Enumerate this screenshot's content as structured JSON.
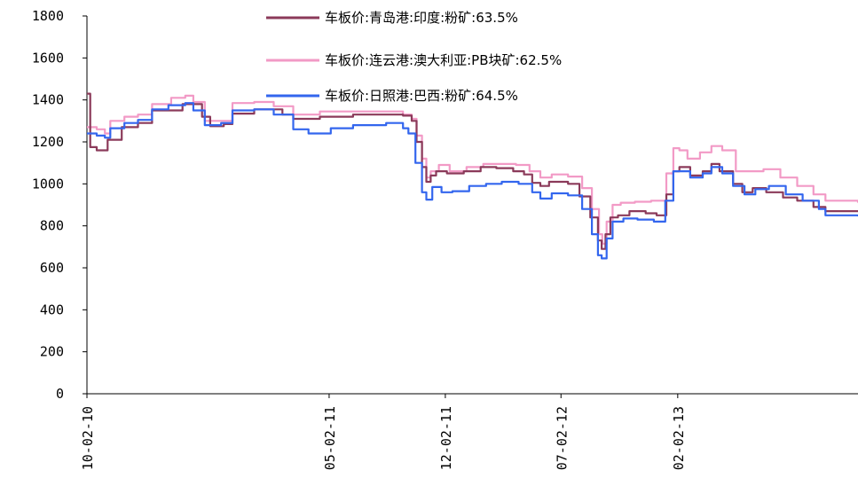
{
  "chart_data": {
    "type": "line",
    "title": "",
    "xlabel": "",
    "ylabel": "",
    "ylim": [
      0,
      1800
    ],
    "yticks": [
      0,
      200,
      400,
      600,
      800,
      1000,
      1200,
      1400,
      1600,
      1800
    ],
    "xlim": [
      "2010-02-10",
      "2013-12-31"
    ],
    "xticks": [
      "2010-02-10",
      "2011-05-02",
      "2011-12-02",
      "2012-07-02",
      "2013-02-02"
    ],
    "xtick_labels": [
      "10-02-10",
      "05-02-11",
      "12-02-11",
      "07-02-12",
      "02-02-13"
    ],
    "grid": false,
    "legend_position": "top-right",
    "series": [
      {
        "name": "车板价:青岛港:印度:粉矿:63.5%",
        "color": "#8b3a5a",
        "points": [
          [
            "2010-02-10",
            1430
          ],
          [
            "2010-02-14",
            1430
          ],
          [
            "2010-02-16",
            1175
          ],
          [
            "2010-02-28",
            1160
          ],
          [
            "2010-03-12",
            1160
          ],
          [
            "2010-03-20",
            1210
          ],
          [
            "2010-04-15",
            1270
          ],
          [
            "2010-05-15",
            1290
          ],
          [
            "2010-06-10",
            1350
          ],
          [
            "2010-07-15",
            1350
          ],
          [
            "2010-08-05",
            1380
          ],
          [
            "2010-08-20",
            1380
          ],
          [
            "2010-09-10",
            1320
          ],
          [
            "2010-09-25",
            1275
          ],
          [
            "2010-10-20",
            1285
          ],
          [
            "2010-11-05",
            1335
          ],
          [
            "2010-12-15",
            1355
          ],
          [
            "2011-01-15",
            1355
          ],
          [
            "2011-02-05",
            1330
          ],
          [
            "2011-02-25",
            1310
          ],
          [
            "2011-04-15",
            1320
          ],
          [
            "2011-06-15",
            1330
          ],
          [
            "2011-08-15",
            1330
          ],
          [
            "2011-09-15",
            1325
          ],
          [
            "2011-10-01",
            1300
          ],
          [
            "2011-10-10",
            1200
          ],
          [
            "2011-10-20",
            1080
          ],
          [
            "2011-10-28",
            1010
          ],
          [
            "2011-11-05",
            1040
          ],
          [
            "2011-11-15",
            1060
          ],
          [
            "2011-12-05",
            1050
          ],
          [
            "2012-01-05",
            1060
          ],
          [
            "2012-02-05",
            1080
          ],
          [
            "2012-03-05",
            1075
          ],
          [
            "2012-04-05",
            1060
          ],
          [
            "2012-04-25",
            1045
          ],
          [
            "2012-05-10",
            1005
          ],
          [
            "2012-05-25",
            990
          ],
          [
            "2012-06-10",
            1010
          ],
          [
            "2012-07-15",
            1000
          ],
          [
            "2012-08-05",
            940
          ],
          [
            "2012-08-25",
            840
          ],
          [
            "2012-09-08",
            730
          ],
          [
            "2012-09-15",
            690
          ],
          [
            "2012-09-22",
            760
          ],
          [
            "2012-10-01",
            840
          ],
          [
            "2012-10-15",
            850
          ],
          [
            "2012-11-05",
            870
          ],
          [
            "2012-12-05",
            860
          ],
          [
            "2012-12-25",
            850
          ],
          [
            "2013-01-12",
            950
          ],
          [
            "2013-01-25",
            1060
          ],
          [
            "2013-02-05",
            1080
          ],
          [
            "2013-02-25",
            1040
          ],
          [
            "2013-03-20",
            1060
          ],
          [
            "2013-04-05",
            1095
          ],
          [
            "2013-04-20",
            1060
          ],
          [
            "2013-05-15",
            1000
          ],
          [
            "2013-06-01",
            960
          ],
          [
            "2013-06-20",
            980
          ],
          [
            "2013-07-15",
            960
          ],
          [
            "2013-08-15",
            935
          ],
          [
            "2013-09-10",
            920
          ],
          [
            "2013-10-10",
            890
          ],
          [
            "2013-11-01",
            870
          ],
          [
            "2013-12-31",
            870
          ]
        ]
      },
      {
        "name": "车板价:连云港:澳大利亚:PB块矿:62.5%",
        "color": "#f29ac6",
        "points": [
          [
            "2010-02-10",
            1270
          ],
          [
            "2010-02-28",
            1260
          ],
          [
            "2010-03-15",
            1240
          ],
          [
            "2010-03-25",
            1300
          ],
          [
            "2010-04-20",
            1320
          ],
          [
            "2010-05-15",
            1330
          ],
          [
            "2010-06-10",
            1380
          ],
          [
            "2010-07-15",
            1410
          ],
          [
            "2010-08-10",
            1420
          ],
          [
            "2010-08-25",
            1390
          ],
          [
            "2010-09-15",
            1300
          ],
          [
            "2010-10-15",
            1300
          ],
          [
            "2010-11-05",
            1385
          ],
          [
            "2010-12-15",
            1390
          ],
          [
            "2011-01-20",
            1370
          ],
          [
            "2011-02-25",
            1330
          ],
          [
            "2011-04-15",
            1345
          ],
          [
            "2011-06-15",
            1345
          ],
          [
            "2011-08-15",
            1345
          ],
          [
            "2011-09-15",
            1330
          ],
          [
            "2011-10-01",
            1310
          ],
          [
            "2011-10-10",
            1230
          ],
          [
            "2011-10-20",
            1120
          ],
          [
            "2011-10-28",
            1030
          ],
          [
            "2011-11-05",
            1060
          ],
          [
            "2011-11-20",
            1090
          ],
          [
            "2011-12-10",
            1060
          ],
          [
            "2012-01-10",
            1080
          ],
          [
            "2012-02-10",
            1095
          ],
          [
            "2012-03-10",
            1095
          ],
          [
            "2012-04-10",
            1090
          ],
          [
            "2012-05-05",
            1060
          ],
          [
            "2012-05-25",
            1030
          ],
          [
            "2012-06-15",
            1045
          ],
          [
            "2012-07-15",
            1035
          ],
          [
            "2012-08-10",
            980
          ],
          [
            "2012-08-28",
            880
          ],
          [
            "2012-09-10",
            760
          ],
          [
            "2012-09-16",
            715
          ],
          [
            "2012-09-24",
            820
          ],
          [
            "2012-10-05",
            900
          ],
          [
            "2012-10-20",
            910
          ],
          [
            "2012-11-15",
            915
          ],
          [
            "2012-12-15",
            920
          ],
          [
            "2012-12-28",
            920
          ],
          [
            "2013-01-12",
            1050
          ],
          [
            "2013-01-25",
            1170
          ],
          [
            "2013-02-05",
            1160
          ],
          [
            "2013-02-20",
            1120
          ],
          [
            "2013-03-15",
            1150
          ],
          [
            "2013-04-05",
            1180
          ],
          [
            "2013-04-25",
            1160
          ],
          [
            "2013-05-20",
            1060
          ],
          [
            "2013-06-10",
            1060
          ],
          [
            "2013-07-10",
            1070
          ],
          [
            "2013-08-10",
            1030
          ],
          [
            "2013-09-10",
            990
          ],
          [
            "2013-10-10",
            950
          ],
          [
            "2013-11-01",
            920
          ],
          [
            "2013-12-31",
            910
          ]
        ]
      },
      {
        "name": "车板价:日照港:巴西:粉矿:64.5%",
        "color": "#3366ee",
        "points": [
          [
            "2010-02-10",
            1240
          ],
          [
            "2010-02-28",
            1230
          ],
          [
            "2010-03-15",
            1220
          ],
          [
            "2010-03-25",
            1265
          ],
          [
            "2010-04-20",
            1290
          ],
          [
            "2010-05-15",
            1305
          ],
          [
            "2010-06-10",
            1355
          ],
          [
            "2010-07-10",
            1375
          ],
          [
            "2010-08-10",
            1385
          ],
          [
            "2010-08-25",
            1350
          ],
          [
            "2010-09-15",
            1280
          ],
          [
            "2010-10-15",
            1290
          ],
          [
            "2010-11-05",
            1350
          ],
          [
            "2010-12-15",
            1355
          ],
          [
            "2011-01-20",
            1330
          ],
          [
            "2011-02-25",
            1260
          ],
          [
            "2011-03-25",
            1240
          ],
          [
            "2011-05-05",
            1265
          ],
          [
            "2011-06-15",
            1280
          ],
          [
            "2011-08-15",
            1290
          ],
          [
            "2011-09-15",
            1265
          ],
          [
            "2011-09-25",
            1240
          ],
          [
            "2011-10-08",
            1100
          ],
          [
            "2011-10-20",
            960
          ],
          [
            "2011-10-28",
            925
          ],
          [
            "2011-11-08",
            985
          ],
          [
            "2011-11-25",
            960
          ],
          [
            "2011-12-15",
            965
          ],
          [
            "2012-01-15",
            990
          ],
          [
            "2012-02-15",
            1000
          ],
          [
            "2012-03-15",
            1010
          ],
          [
            "2012-04-15",
            1000
          ],
          [
            "2012-05-10",
            960
          ],
          [
            "2012-05-25",
            930
          ],
          [
            "2012-06-15",
            955
          ],
          [
            "2012-07-15",
            945
          ],
          [
            "2012-08-10",
            880
          ],
          [
            "2012-08-28",
            760
          ],
          [
            "2012-09-08",
            660
          ],
          [
            "2012-09-15",
            645
          ],
          [
            "2012-09-24",
            740
          ],
          [
            "2012-10-05",
            820
          ],
          [
            "2012-10-25",
            835
          ],
          [
            "2012-11-20",
            830
          ],
          [
            "2012-12-20",
            820
          ],
          [
            "2013-01-10",
            920
          ],
          [
            "2013-01-25",
            1060
          ],
          [
            "2013-02-05",
            1060
          ],
          [
            "2013-02-25",
            1030
          ],
          [
            "2013-03-20",
            1050
          ],
          [
            "2013-04-05",
            1080
          ],
          [
            "2013-04-25",
            1050
          ],
          [
            "2013-05-15",
            990
          ],
          [
            "2013-06-05",
            950
          ],
          [
            "2013-06-25",
            975
          ],
          [
            "2013-07-20",
            990
          ],
          [
            "2013-08-20",
            950
          ],
          [
            "2013-09-20",
            920
          ],
          [
            "2013-10-20",
            880
          ],
          [
            "2013-11-01",
            850
          ],
          [
            "2013-12-31",
            845
          ]
        ]
      }
    ]
  }
}
